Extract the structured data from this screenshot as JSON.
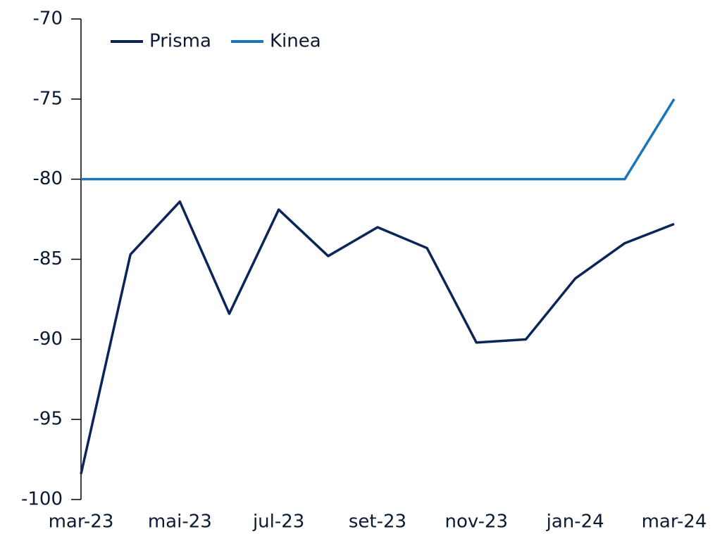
{
  "chart_data": {
    "type": "line",
    "categories": [
      "mar-23",
      null,
      "mai-23",
      null,
      "jul-23",
      null,
      "set-23",
      null,
      "nov-23",
      null,
      "jan-24",
      null,
      "mar-24"
    ],
    "series": [
      {
        "name": "Prisma",
        "color": "#0b2559",
        "values": [
          -98.4,
          -84.7,
          -81.4,
          -88.4,
          -81.9,
          -84.8,
          -83.0,
          -84.3,
          -90.2,
          -90.0,
          -86.2,
          -84.0,
          -82.8
        ]
      },
      {
        "name": "Kinea",
        "color": "#1a75bc",
        "values": [
          -80,
          -80,
          -80,
          -80,
          -80,
          -80,
          -80,
          -80,
          -80,
          -80,
          -80,
          -80,
          -75
        ]
      }
    ],
    "ylim": [
      -100,
      -70
    ],
    "yticks": [
      -100,
      -95,
      -90,
      -85,
      -80,
      -75,
      -70
    ],
    "legend": "top-left"
  }
}
